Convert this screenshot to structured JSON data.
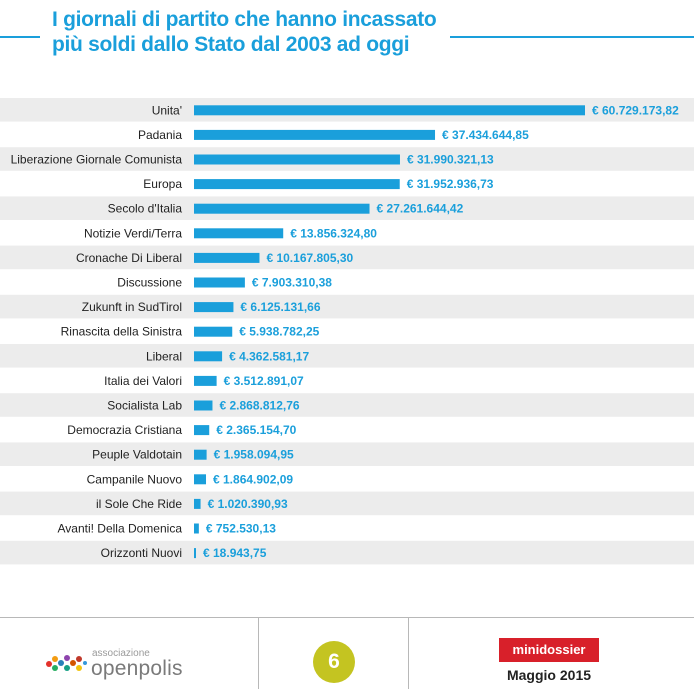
{
  "header": {
    "title_line1": "I giornali di partito che hanno incassato",
    "title_line2": "più soldi dallo Stato dal 2003 ad oggi",
    "accent_color": "#1a9fdb"
  },
  "chart_data": {
    "type": "bar",
    "orientation": "horizontal",
    "title": "I giornali di partito che hanno incassato più soldi dallo Stato dal 2003 ad oggi",
    "xlabel": "",
    "ylabel": "",
    "grid": false,
    "bar_color": "#1a9fdb",
    "row_stripe_color": "#ececec",
    "categories": [
      "Unita'",
      "Padania",
      "Liberazione Giornale Comunista",
      "Europa",
      "Secolo d'Italia",
      "Notizie Verdi/Terra",
      "Cronache Di Liberal",
      "Discussione",
      "Zukunft in SudTirol",
      "Rinascita della Sinistra",
      "Liberal",
      "Italia dei Valori",
      "Socialista Lab",
      "Democrazia Cristiana",
      "Peuple Valdotain",
      "Campanile Nuovo",
      "il Sole Che Ride",
      "Avanti! Della Domenica",
      "Orizzonti Nuovi"
    ],
    "values": [
      60729173.82,
      37434644.85,
      31990321.13,
      31952936.73,
      27261644.42,
      13856324.8,
      10167805.3,
      7903310.38,
      6125131.66,
      5938782.25,
      4362581.17,
      3512891.07,
      2868812.76,
      2365154.7,
      1958094.95,
      1864902.09,
      1020390.93,
      752530.13,
      18943.75
    ],
    "value_labels": [
      "€ 60.729.173,82",
      "€ 37.434.644,85",
      "€ 31.990.321,13",
      "€ 31.952.936,73",
      "€ 27.261.644,42",
      "€ 13.856.324,80",
      "€ 10.167.805,30",
      "€ 7.903.310,38",
      "€ 6.125.131,66",
      "€ 5.938.782,25",
      "€ 4.362.581,17",
      "€ 3.512.891,07",
      "€ 2.868.812,76",
      "€ 2.365.154,70",
      "€ 1.958.094,95",
      "€ 1.864.902,09",
      "€ 1.020.390,93",
      "€ 752.530,13",
      "€ 18.943,75"
    ]
  },
  "footer": {
    "org_small": "associazione",
    "org_name": "openpolis",
    "page_number": "6",
    "series_label": "minidossier",
    "date": "Maggio 2015",
    "badge_color": "#c4c421",
    "dossier_color": "#d8202a"
  }
}
